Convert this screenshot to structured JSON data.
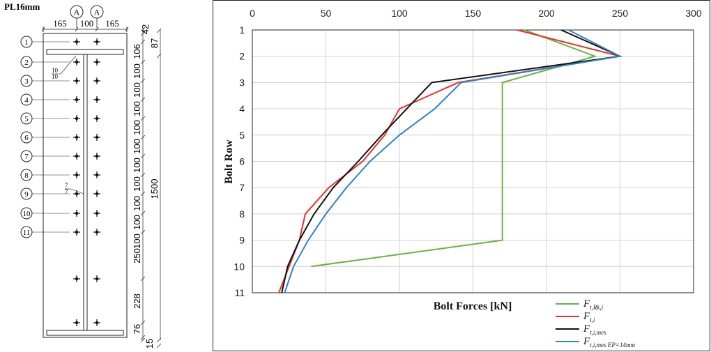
{
  "drawing": {
    "plate_label": "PL16mm",
    "axis_markers": [
      "A",
      "A"
    ],
    "top_dims": [
      "165",
      "100",
      "165"
    ],
    "vertical_dims": [
      "42",
      "87",
      "106",
      "100",
      "100",
      "100",
      "100",
      "100",
      "100",
      "100",
      "100",
      "100",
      "100",
      "250",
      "228",
      "76",
      "15"
    ],
    "overall_dim": "1500",
    "weld_notes": [
      {
        "top": "10",
        "bottom": "10"
      },
      {
        "top": "7",
        "bottom": "7"
      }
    ],
    "bolt_rows": [
      "1",
      "2",
      "3",
      "4",
      "5",
      "6",
      "7",
      "8",
      "9",
      "10",
      "11"
    ]
  },
  "chart_data": {
    "type": "line",
    "xlabel": "Bolt Forces [kN]",
    "ylabel": "Bolt Row",
    "x_axis_position": "top",
    "y_inverted": true,
    "xlim": [
      0,
      300
    ],
    "ylim": [
      1,
      11
    ],
    "xticks": [
      "0",
      "50",
      "100",
      "150",
      "200",
      "250",
      "300"
    ],
    "yticks": [
      "1",
      "2",
      "3",
      "4",
      "5",
      "6",
      "7",
      "8",
      "9",
      "10",
      "11"
    ],
    "grid": true,
    "legend_position": "bottom-right",
    "series": [
      {
        "name": "F",
        "sub": "t,Rk,i",
        "color": "#6ab23c",
        "x": [
          185,
          233,
          170,
          170,
          170,
          170,
          170,
          170,
          170,
          40
        ],
        "y": [
          1,
          2,
          3,
          4,
          5,
          6,
          7,
          8,
          9,
          10
        ]
      },
      {
        "name": "F",
        "sub": "t,i",
        "color": "#e8322b",
        "x": [
          180,
          250,
          140,
          100,
          90,
          75,
          52,
          36,
          32,
          25,
          18
        ],
        "y": [
          1,
          2,
          3,
          4,
          5,
          6,
          7,
          8,
          9,
          10,
          11
        ]
      },
      {
        "name": "F",
        "sub": "t,i,mes",
        "color": "#111111",
        "x": [
          210,
          250,
          122,
          105,
          88,
          72,
          55,
          42,
          32,
          24,
          20
        ],
        "y": [
          1,
          2,
          3,
          4,
          5,
          6,
          7,
          8,
          9,
          10,
          11
        ]
      },
      {
        "name": "F",
        "sub": "t,i,mes EP=14mm",
        "color": "#2f83c8",
        "x": [
          215,
          250,
          142,
          124,
          100,
          80,
          64,
          50,
          38,
          28,
          22
        ],
        "y": [
          1,
          2,
          3,
          4,
          5,
          6,
          7,
          8,
          9,
          10,
          11
        ]
      }
    ]
  }
}
